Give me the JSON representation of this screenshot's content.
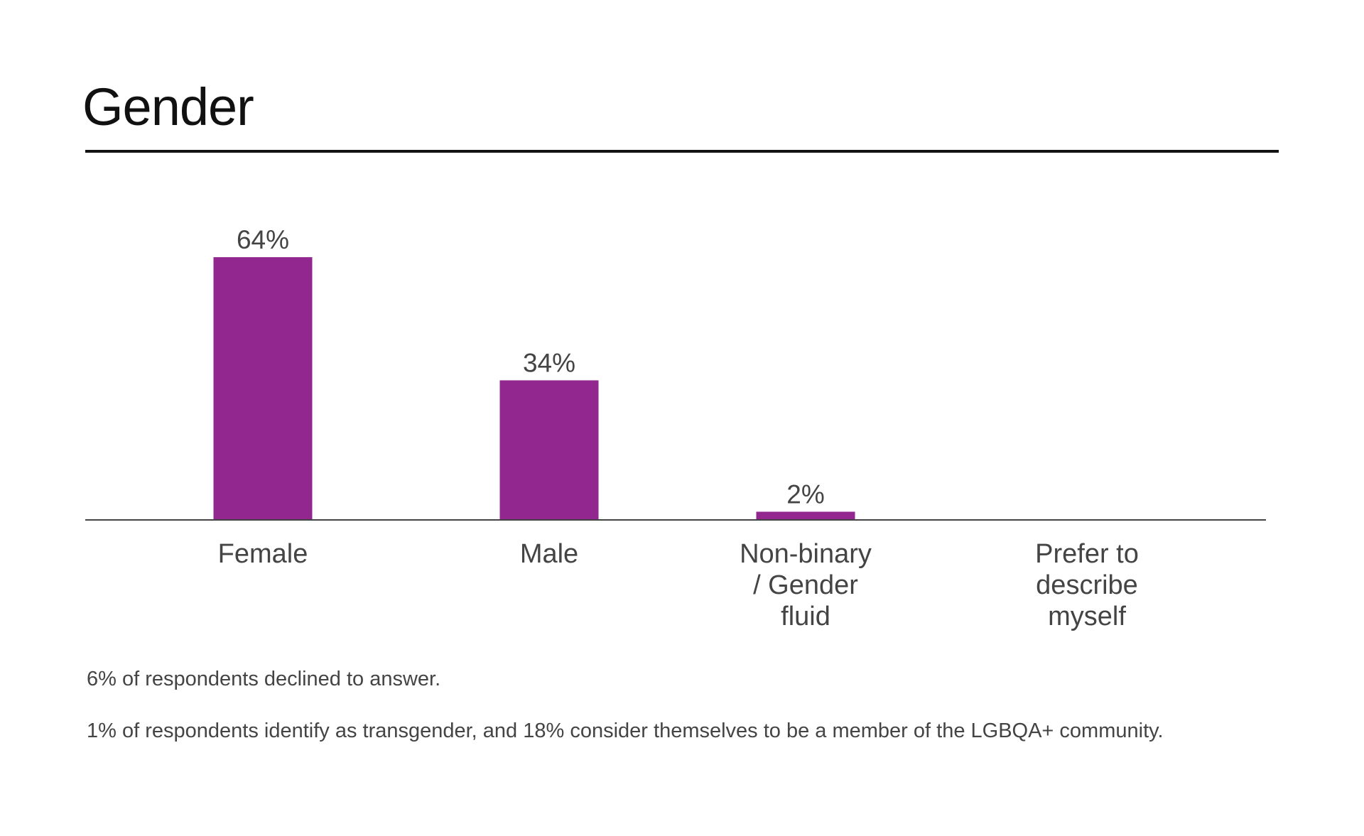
{
  "chart_data": {
    "type": "bar",
    "title": "Gender",
    "categories": [
      "Female",
      "Male",
      "Non-binary / Gender fluid",
      "Prefer to describe myself"
    ],
    "category_lines": [
      [
        "Female"
      ],
      [
        "Male"
      ],
      [
        "Non-binary",
        "/ Gender",
        "fluid"
      ],
      [
        "Prefer to",
        "describe",
        "myself"
      ]
    ],
    "values": [
      64,
      34,
      2,
      null
    ],
    "data_labels": [
      "64%",
      "34%",
      "2%",
      ""
    ],
    "xlabel": "",
    "ylabel": "",
    "ylim": [
      0,
      70
    ],
    "grid": false,
    "bar_color": "#92278F",
    "notes": [
      "6% of respondents declined to answer.",
      "1% of respondents identify as transgender, and 18% consider themselves to be a member of the LGBQA+ community."
    ]
  }
}
